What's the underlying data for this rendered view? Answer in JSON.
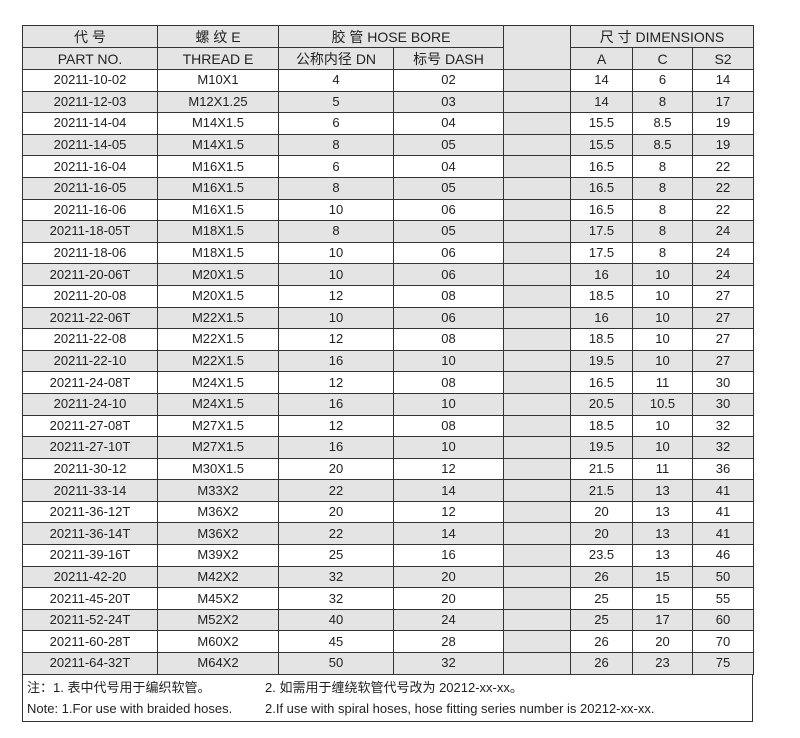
{
  "header": {
    "part_cn": "代 号",
    "part_en": "PART NO.",
    "thread_cn": "螺 纹 E",
    "thread_en": "THREAD  E",
    "hose": "胶 管  HOSE BORE",
    "dn": "公称内径 DN",
    "dash": "标号 DASH",
    "dims": "尺 寸 DIMENSIONS",
    "a": "A",
    "c": "C",
    "s2": "S2"
  },
  "rows": [
    [
      "20211-10-02",
      "M10X1",
      "4",
      "02",
      "14",
      "6",
      "14"
    ],
    [
      "20211-12-03",
      "M12X1.25",
      "5",
      "03",
      "14",
      "8",
      "17"
    ],
    [
      "20211-14-04",
      "M14X1.5",
      "6",
      "04",
      "15.5",
      "8.5",
      "19"
    ],
    [
      "20211-14-05",
      "M14X1.5",
      "8",
      "05",
      "15.5",
      "8.5",
      "19"
    ],
    [
      "20211-16-04",
      "M16X1.5",
      "6",
      "04",
      "16.5",
      "8",
      "22"
    ],
    [
      "20211-16-05",
      "M16X1.5",
      "8",
      "05",
      "16.5",
      "8",
      "22"
    ],
    [
      "20211-16-06",
      "M16X1.5",
      "10",
      "06",
      "16.5",
      "8",
      "22"
    ],
    [
      "20211-18-05T",
      "M18X1.5",
      "8",
      "05",
      "17.5",
      "8",
      "24"
    ],
    [
      "20211-18-06",
      "M18X1.5",
      "10",
      "06",
      "17.5",
      "8",
      "24"
    ],
    [
      "20211-20-06T",
      "M20X1.5",
      "10",
      "06",
      "16",
      "10",
      "24"
    ],
    [
      "20211-20-08",
      "M20X1.5",
      "12",
      "08",
      "18.5",
      "10",
      "27"
    ],
    [
      "20211-22-06T",
      "M22X1.5",
      "10",
      "06",
      "16",
      "10",
      "27"
    ],
    [
      "20211-22-08",
      "M22X1.5",
      "12",
      "08",
      "18.5",
      "10",
      "27"
    ],
    [
      "20211-22-10",
      "M22X1.5",
      "16",
      "10",
      "19.5",
      "10",
      "27"
    ],
    [
      "20211-24-08T",
      "M24X1.5",
      "12",
      "08",
      "16.5",
      "11",
      "30"
    ],
    [
      "20211-24-10",
      "M24X1.5",
      "16",
      "10",
      "20.5",
      "10.5",
      "30"
    ],
    [
      "20211-27-08T",
      "M27X1.5",
      "12",
      "08",
      "18.5",
      "10",
      "32"
    ],
    [
      "20211-27-10T",
      "M27X1.5",
      "16",
      "10",
      "19.5",
      "10",
      "32"
    ],
    [
      "20211-30-12",
      "M30X1.5",
      "20",
      "12",
      "21.5",
      "11",
      "36"
    ],
    [
      "20211-33-14",
      "M33X2",
      "22",
      "14",
      "21.5",
      "13",
      "41"
    ],
    [
      "20211-36-12T",
      "M36X2",
      "20",
      "12",
      "20",
      "13",
      "41"
    ],
    [
      "20211-36-14T",
      "M36X2",
      "22",
      "14",
      "20",
      "13",
      "41"
    ],
    [
      "20211-39-16T",
      "M39X2",
      "25",
      "16",
      "23.5",
      "13",
      "46"
    ],
    [
      "20211-42-20",
      "M42X2",
      "32",
      "20",
      "26",
      "15",
      "50"
    ],
    [
      "20211-45-20T",
      "M45X2",
      "32",
      "20",
      "25",
      "15",
      "55"
    ],
    [
      "20211-52-24T",
      "M52X2",
      "40",
      "24",
      "25",
      "17",
      "60"
    ],
    [
      "20211-60-28T",
      "M60X2",
      "45",
      "28",
      "26",
      "20",
      "70"
    ],
    [
      "20211-64-32T",
      "M64X2",
      "50",
      "32",
      "26",
      "23",
      "75"
    ]
  ],
  "notes": {
    "cn1": "注：1. 表中代号用于编织软管。",
    "cn2": "2. 如需用于缠绕软管代号改为 20212-xx-xx。",
    "en1": "Note: 1.For use with braided hoses.",
    "en2": "2.If use with spiral hoses, hose fitting series number is 20212-xx-xx."
  }
}
